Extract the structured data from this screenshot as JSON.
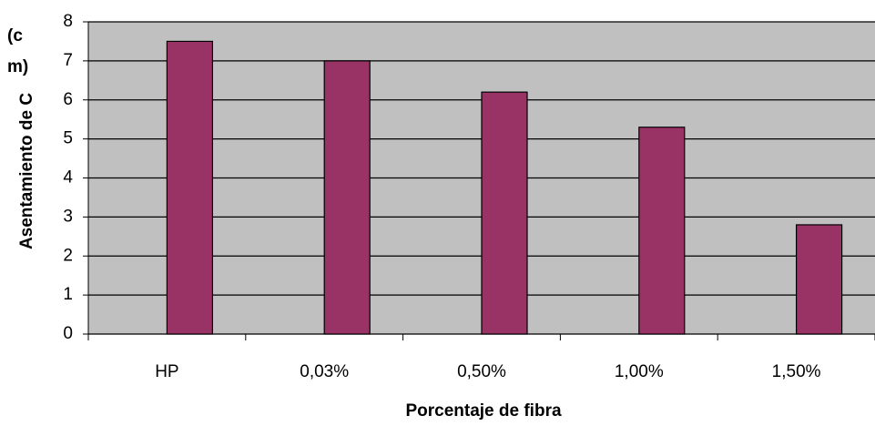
{
  "chart_data": {
    "type": "bar",
    "y_label": "Asentamiento de C",
    "y_unit_lines": [
      "(c",
      "m)"
    ],
    "x_label": "Porcentaje de fibra",
    "categories": [
      "HP",
      "0,03%",
      "0,50%",
      "1,00%",
      "1,50%"
    ],
    "values": [
      7.5,
      7.0,
      6.2,
      5.3,
      2.8
    ],
    "color": "#993366",
    "background": "#c0c0c0",
    "ylim": [
      0,
      8
    ],
    "yticks": [
      0,
      1,
      2,
      3,
      4,
      5,
      6,
      7,
      8
    ],
    "grid": true
  }
}
